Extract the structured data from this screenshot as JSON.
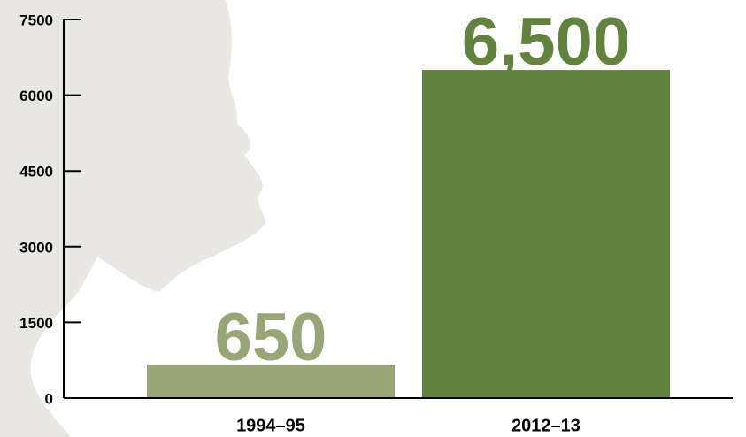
{
  "chart_data": {
    "type": "bar",
    "categories": [
      "1994–95",
      "2012–13"
    ],
    "values": [
      650,
      6500
    ],
    "value_labels": [
      "650",
      "6,500"
    ],
    "colors": [
      "#98a577",
      "#62823f"
    ],
    "ylim": [
      0,
      7500
    ],
    "yticks": [
      0,
      1500,
      3000,
      4500,
      6000,
      7500
    ]
  }
}
